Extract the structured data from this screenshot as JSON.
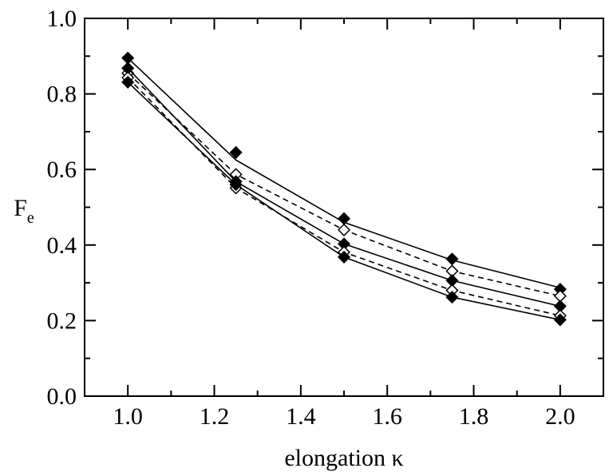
{
  "chart_data": {
    "type": "line",
    "xlabel": "elongation κ",
    "ylabel": "F",
    "ylabel_sub": "e",
    "xlim": [
      0.9,
      2.1
    ],
    "ylim": [
      0.0,
      1.0
    ],
    "x_ticks": [
      "1.0",
      "1.2",
      "1.4",
      "1.6",
      "1.8",
      "2.0"
    ],
    "y_ticks": [
      "0.0",
      "0.2",
      "0.4",
      "0.6",
      "0.8",
      "1.0"
    ],
    "grid": false,
    "legend": "none",
    "series": [
      {
        "style": "marker-only",
        "marker": "filled-diamond",
        "x": [
          1.0,
          1.25,
          1.5,
          1.75,
          2.0
        ],
        "y": [
          0.895,
          0.645,
          0.47,
          0.363,
          0.283
        ]
      },
      {
        "style": "solid",
        "marker": "none",
        "x": [
          1.0,
          1.25,
          1.5,
          1.75,
          2.0
        ],
        "y": [
          0.895,
          0.625,
          0.46,
          0.36,
          0.287
        ]
      },
      {
        "style": "dashed",
        "marker": "open-diamond",
        "x": [
          1.0,
          1.25,
          1.5,
          1.75,
          2.0
        ],
        "y": [
          0.855,
          0.587,
          0.44,
          0.331,
          0.265
        ]
      },
      {
        "style": "solid",
        "marker": "filled-diamond",
        "x": [
          1.0,
          1.25,
          1.5,
          1.75,
          2.0
        ],
        "y": [
          0.868,
          0.568,
          0.403,
          0.306,
          0.238
        ]
      },
      {
        "style": "dashed",
        "marker": "open-diamond",
        "x": [
          1.0,
          1.25,
          1.5,
          1.75,
          2.0
        ],
        "y": [
          0.843,
          0.551,
          0.381,
          0.28,
          0.213
        ]
      },
      {
        "style": "solid",
        "marker": "filled-diamond",
        "x": [
          1.0,
          1.25,
          1.5,
          1.75,
          2.0
        ],
        "y": [
          0.831,
          0.56,
          0.368,
          0.262,
          0.202
        ]
      }
    ]
  }
}
